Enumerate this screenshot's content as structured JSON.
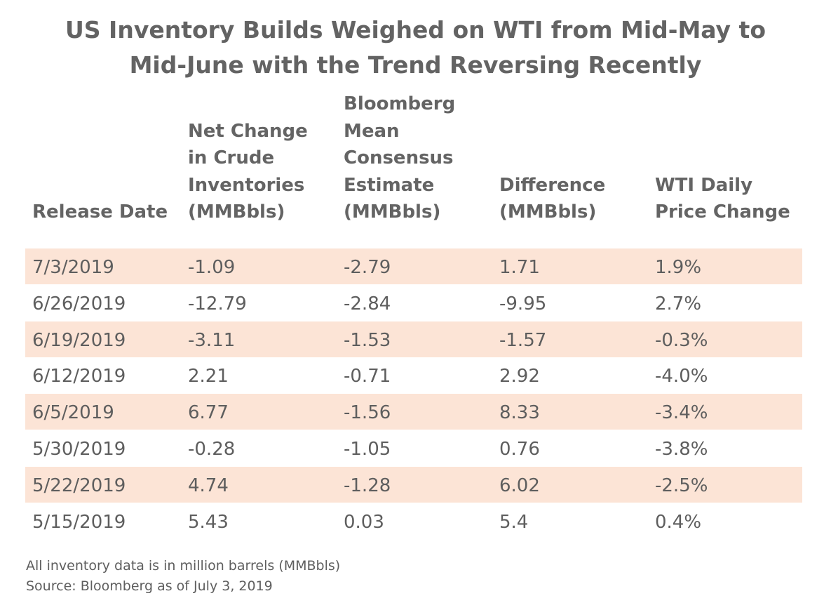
{
  "chart_data": {
    "type": "table",
    "title_lines": [
      "US Inventory Builds Weighed on WTI from Mid-May to",
      "Mid-June with the Trend Reversing Recently"
    ],
    "columns": [
      "Release Date",
      "Net Change\nin Crude\nInventories\n(MMBbls)",
      "Bloomberg\nMean\nConsensus\nEstimate\n(MMBbls)",
      "Difference\n(MMBbls)",
      "WTI Daily\nPrice Change"
    ],
    "rows": [
      [
        "7/3/2019",
        "-1.09",
        "-2.79",
        "1.71",
        "1.9%"
      ],
      [
        "6/26/2019",
        "-12.79",
        "-2.84",
        "-9.95",
        "2.7%"
      ],
      [
        "6/19/2019",
        "-3.11",
        "-1.53",
        "-1.57",
        "-0.3%"
      ],
      [
        "6/12/2019",
        "2.21",
        "-0.71",
        "2.92",
        "-4.0%"
      ],
      [
        "6/5/2019",
        "6.77",
        "-1.56",
        "8.33",
        "-3.4%"
      ],
      [
        "5/30/2019",
        "-0.28",
        "-1.05",
        "0.76",
        "-3.8%"
      ],
      [
        "5/22/2019",
        "4.74",
        "-1.28",
        "6.02",
        "-2.5%"
      ],
      [
        "5/15/2019",
        "5.43",
        "0.03",
        "5.4",
        "0.4%"
      ]
    ],
    "notes": [
      "All inventory data is in million barrels (MMBbls)",
      "Source: Bloomberg as of July 3, 2019"
    ]
  },
  "colors": {
    "shaded_row": "#fce4d6",
    "text": "#5e5e5e",
    "header_text": "#646464"
  }
}
